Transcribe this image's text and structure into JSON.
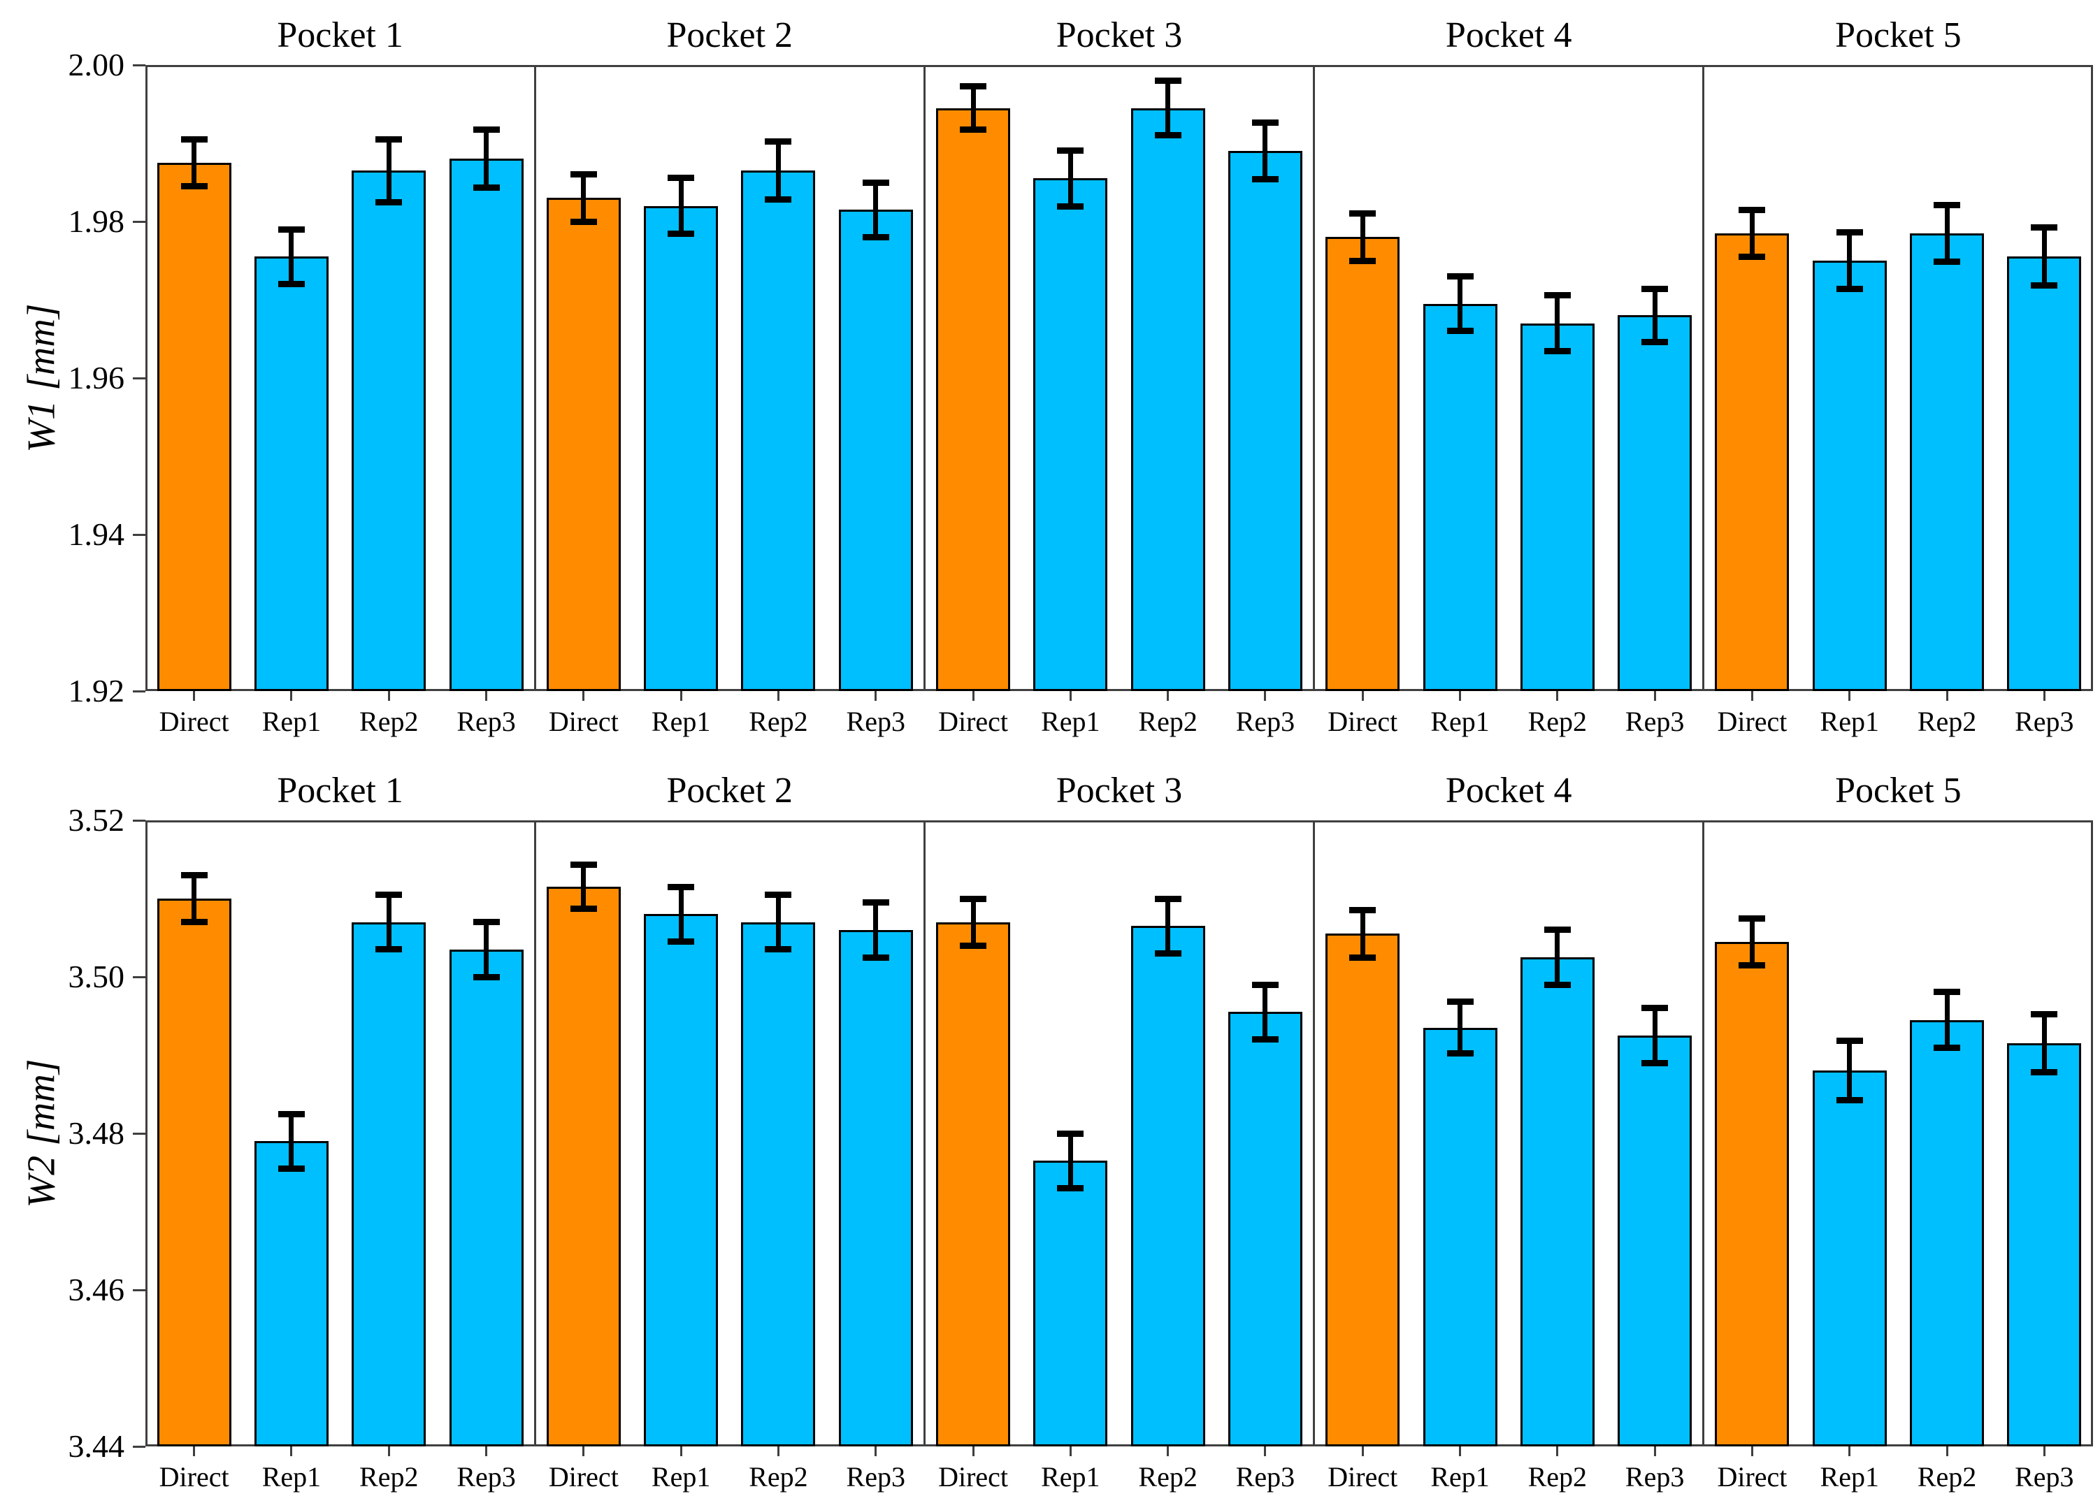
{
  "figure": {
    "background": "#FFFFFF",
    "direct_bar_color": "#FF8C00",
    "replica_bar_color": "#00BFFF",
    "bar_edge_color": "#000000",
    "spine_color": "#3F3F3F",
    "error_bar_color": "#000000"
  },
  "chart_data": [
    {
      "type": "bar",
      "ylabel": "W1 [mm]",
      "ylim": [
        1.92,
        2.0
      ],
      "yticks": [
        "2.00",
        "1.98",
        "1.96",
        "1.94",
        "1.92"
      ],
      "ytick_values": [
        2.0,
        1.98,
        1.96,
        1.94,
        1.92
      ],
      "categories": [
        "Direct",
        "Rep1",
        "Rep2",
        "Rep3"
      ],
      "grid": "off",
      "legend": "none",
      "panels": [
        {
          "title": "Pocket 1",
          "values": [
            1.9875,
            1.9755,
            1.9865,
            1.988
          ],
          "errors": [
            0.003,
            0.0035,
            0.004,
            0.0037
          ]
        },
        {
          "title": "Pocket 2",
          "values": [
            1.983,
            1.982,
            1.9865,
            1.9815
          ],
          "errors": [
            0.003,
            0.0036,
            0.0037,
            0.0035
          ]
        },
        {
          "title": "Pocket 3",
          "values": [
            1.9945,
            1.9855,
            1.9945,
            1.989
          ],
          "errors": [
            0.0028,
            0.0036,
            0.0035,
            0.0036
          ]
        },
        {
          "title": "Pocket 4",
          "values": [
            1.978,
            1.9695,
            1.967,
            1.968
          ],
          "errors": [
            0.003,
            0.0035,
            0.0036,
            0.0034
          ]
        },
        {
          "title": "Pocket 5",
          "values": [
            1.9785,
            1.975,
            1.9785,
            1.9755
          ],
          "errors": [
            0.003,
            0.0036,
            0.0036,
            0.0037
          ]
        }
      ]
    },
    {
      "type": "bar",
      "ylabel": "W2 [mm]",
      "ylim": [
        3.44,
        3.52
      ],
      "yticks": [
        "3.52",
        "3.50",
        "3.48",
        "3.46",
        "3.44"
      ],
      "ytick_values": [
        3.52,
        3.5,
        3.48,
        3.46,
        3.44
      ],
      "categories": [
        "Direct",
        "Rep1",
        "Rep2",
        "Rep3"
      ],
      "grid": "off",
      "legend": "none",
      "panels": [
        {
          "title": "Pocket 1",
          "values": [
            3.51,
            3.479,
            3.507,
            3.5035
          ],
          "errors": [
            0.003,
            0.0035,
            0.0035,
            0.0035
          ]
        },
        {
          "title": "Pocket 2",
          "values": [
            3.5115,
            3.508,
            3.507,
            3.506
          ],
          "errors": [
            0.0028,
            0.0035,
            0.0035,
            0.0035
          ]
        },
        {
          "title": "Pocket 3",
          "values": [
            3.507,
            3.4765,
            3.5065,
            3.4955
          ],
          "errors": [
            0.003,
            0.0035,
            0.0035,
            0.0035
          ]
        },
        {
          "title": "Pocket 4",
          "values": [
            3.5055,
            3.4935,
            3.5025,
            3.4925
          ],
          "errors": [
            0.003,
            0.0033,
            0.0035,
            0.0035
          ]
        },
        {
          "title": "Pocket 5",
          "values": [
            3.5045,
            3.488,
            3.4945,
            3.4915
          ],
          "errors": [
            0.003,
            0.0038,
            0.0036,
            0.0037
          ]
        }
      ]
    }
  ]
}
